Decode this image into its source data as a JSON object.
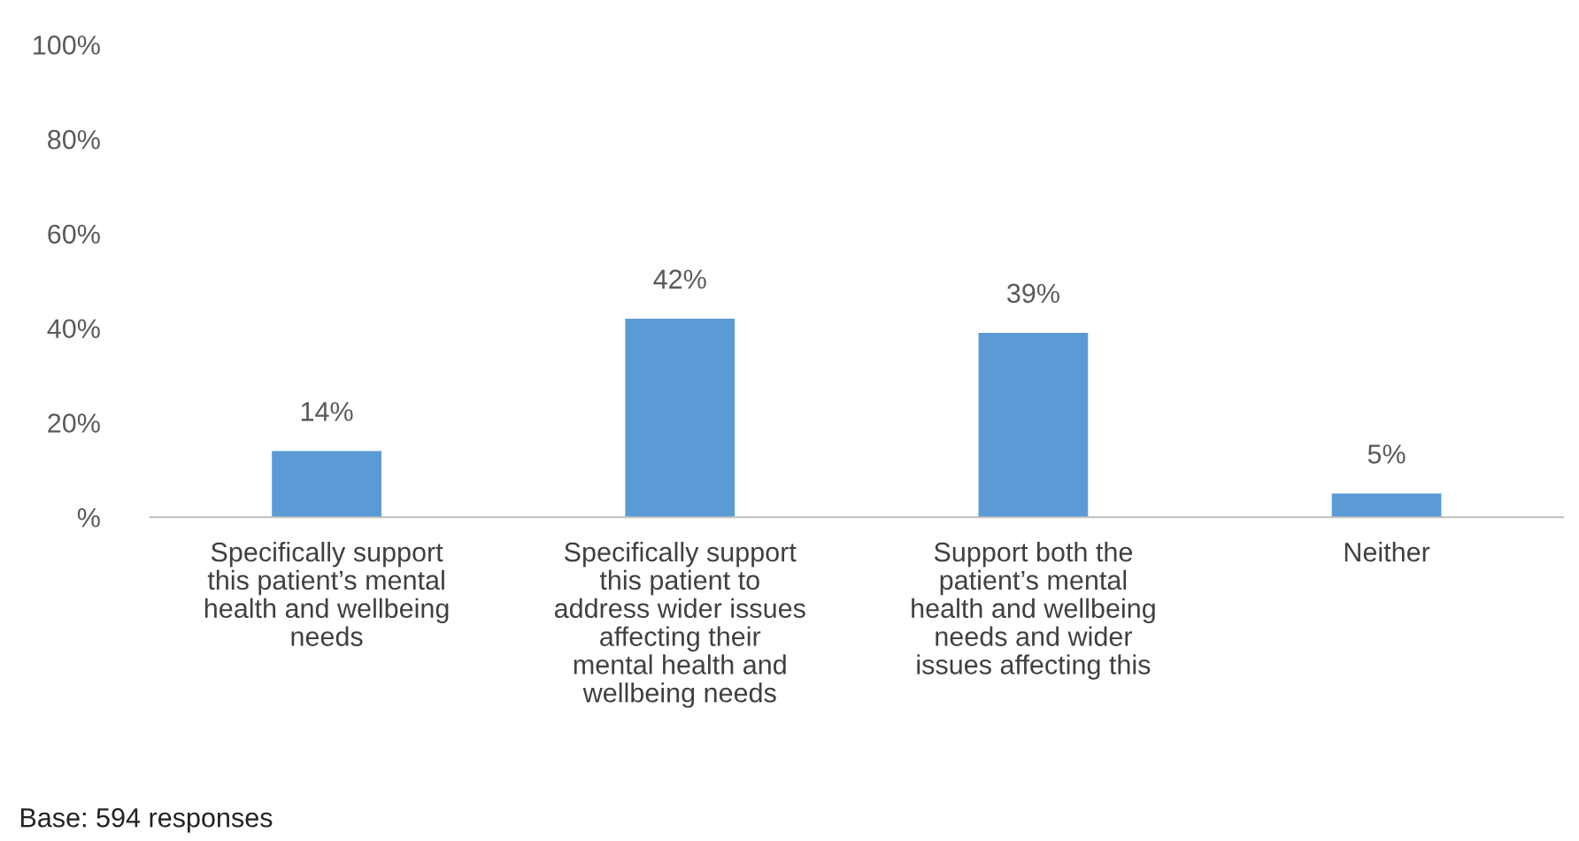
{
  "chart_data": {
    "type": "bar",
    "categories": [
      "Specifically support\nthis patient’s mental\nhealth and wellbeing\nneeds",
      "Specifically support\nthis patient to\naddress wider issues\naffecting their\nmental health and\nwellbeing needs",
      "Support both the\npatient’s mental\nhealth and wellbeing\nneeds and wider\nissues affecting this",
      "Neither"
    ],
    "values": [
      14,
      42,
      39,
      5
    ],
    "value_labels": [
      "14%",
      "42%",
      "39%",
      "5%"
    ],
    "color": "#5b9bd5",
    "ylim": [
      0,
      100
    ],
    "yticks": [
      {
        "value": 0,
        "label": "%"
      },
      {
        "value": 20,
        "label": "20%"
      },
      {
        "value": 40,
        "label": "40%"
      },
      {
        "value": 60,
        "label": "60%"
      },
      {
        "value": 80,
        "label": "80%"
      },
      {
        "value": 100,
        "label": "100%"
      }
    ],
    "grid": false,
    "annotations": [
      "Base: 594 responses"
    ]
  }
}
